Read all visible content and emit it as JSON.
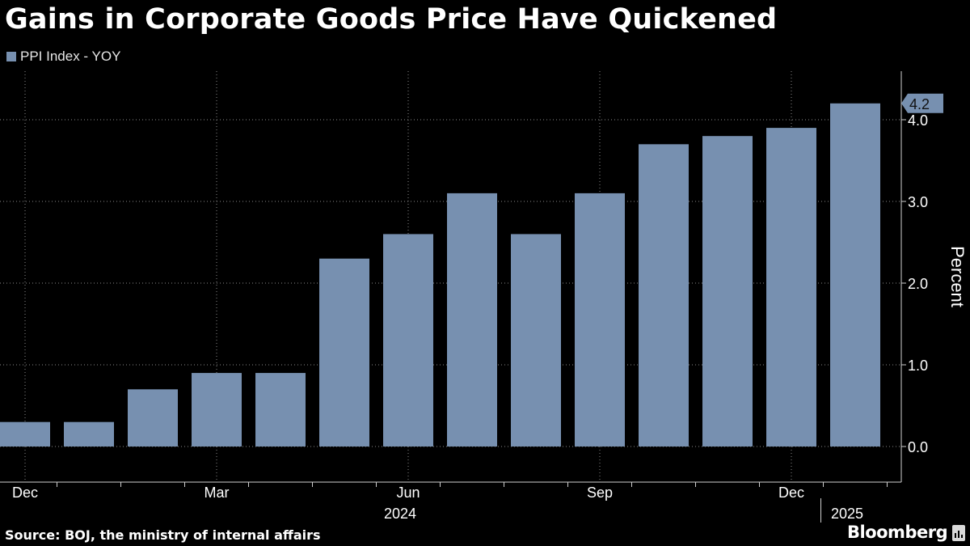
{
  "chart_data": {
    "type": "bar",
    "title": "Gains in Corporate Goods Price Have Quickened",
    "series": [
      {
        "name": "PPI Index - YOY",
        "color": "#7790b0",
        "values": [
          0.3,
          0.3,
          0.7,
          0.9,
          0.9,
          2.3,
          2.6,
          3.1,
          2.6,
          3.1,
          3.7,
          3.8,
          3.9,
          4.2
        ]
      }
    ],
    "categories": [
      "Dec 2023",
      "Jan 2024",
      "Feb 2024",
      "Mar 2024",
      "Apr 2024",
      "May 2024",
      "Jun 2024",
      "Jul 2024",
      "Aug 2024",
      "Sep 2024",
      "Oct 2024",
      "Nov 2024",
      "Dec 2024",
      "Jan 2025"
    ],
    "x_tick_labels": [
      {
        "index": 0,
        "label": "Dec"
      },
      {
        "index": 3,
        "label": "Mar"
      },
      {
        "index": 6,
        "label": "Jun"
      },
      {
        "index": 9,
        "label": "Sep"
      },
      {
        "index": 12,
        "label": "Dec"
      }
    ],
    "year_labels": [
      {
        "index": 6,
        "label": "2024"
      },
      {
        "index": 13,
        "label": "2025"
      }
    ],
    "ylabel": "Percent",
    "ylim": [
      -0.4,
      4.6
    ],
    "yticks": [
      "0.0",
      "1.0",
      "2.0",
      "3.0",
      "4.0"
    ],
    "last_value_label": "4.2",
    "grid": true,
    "legend_position": "top-left"
  },
  "source": "Source: BOJ, the ministry of internal affairs",
  "brand": "Bloomberg"
}
